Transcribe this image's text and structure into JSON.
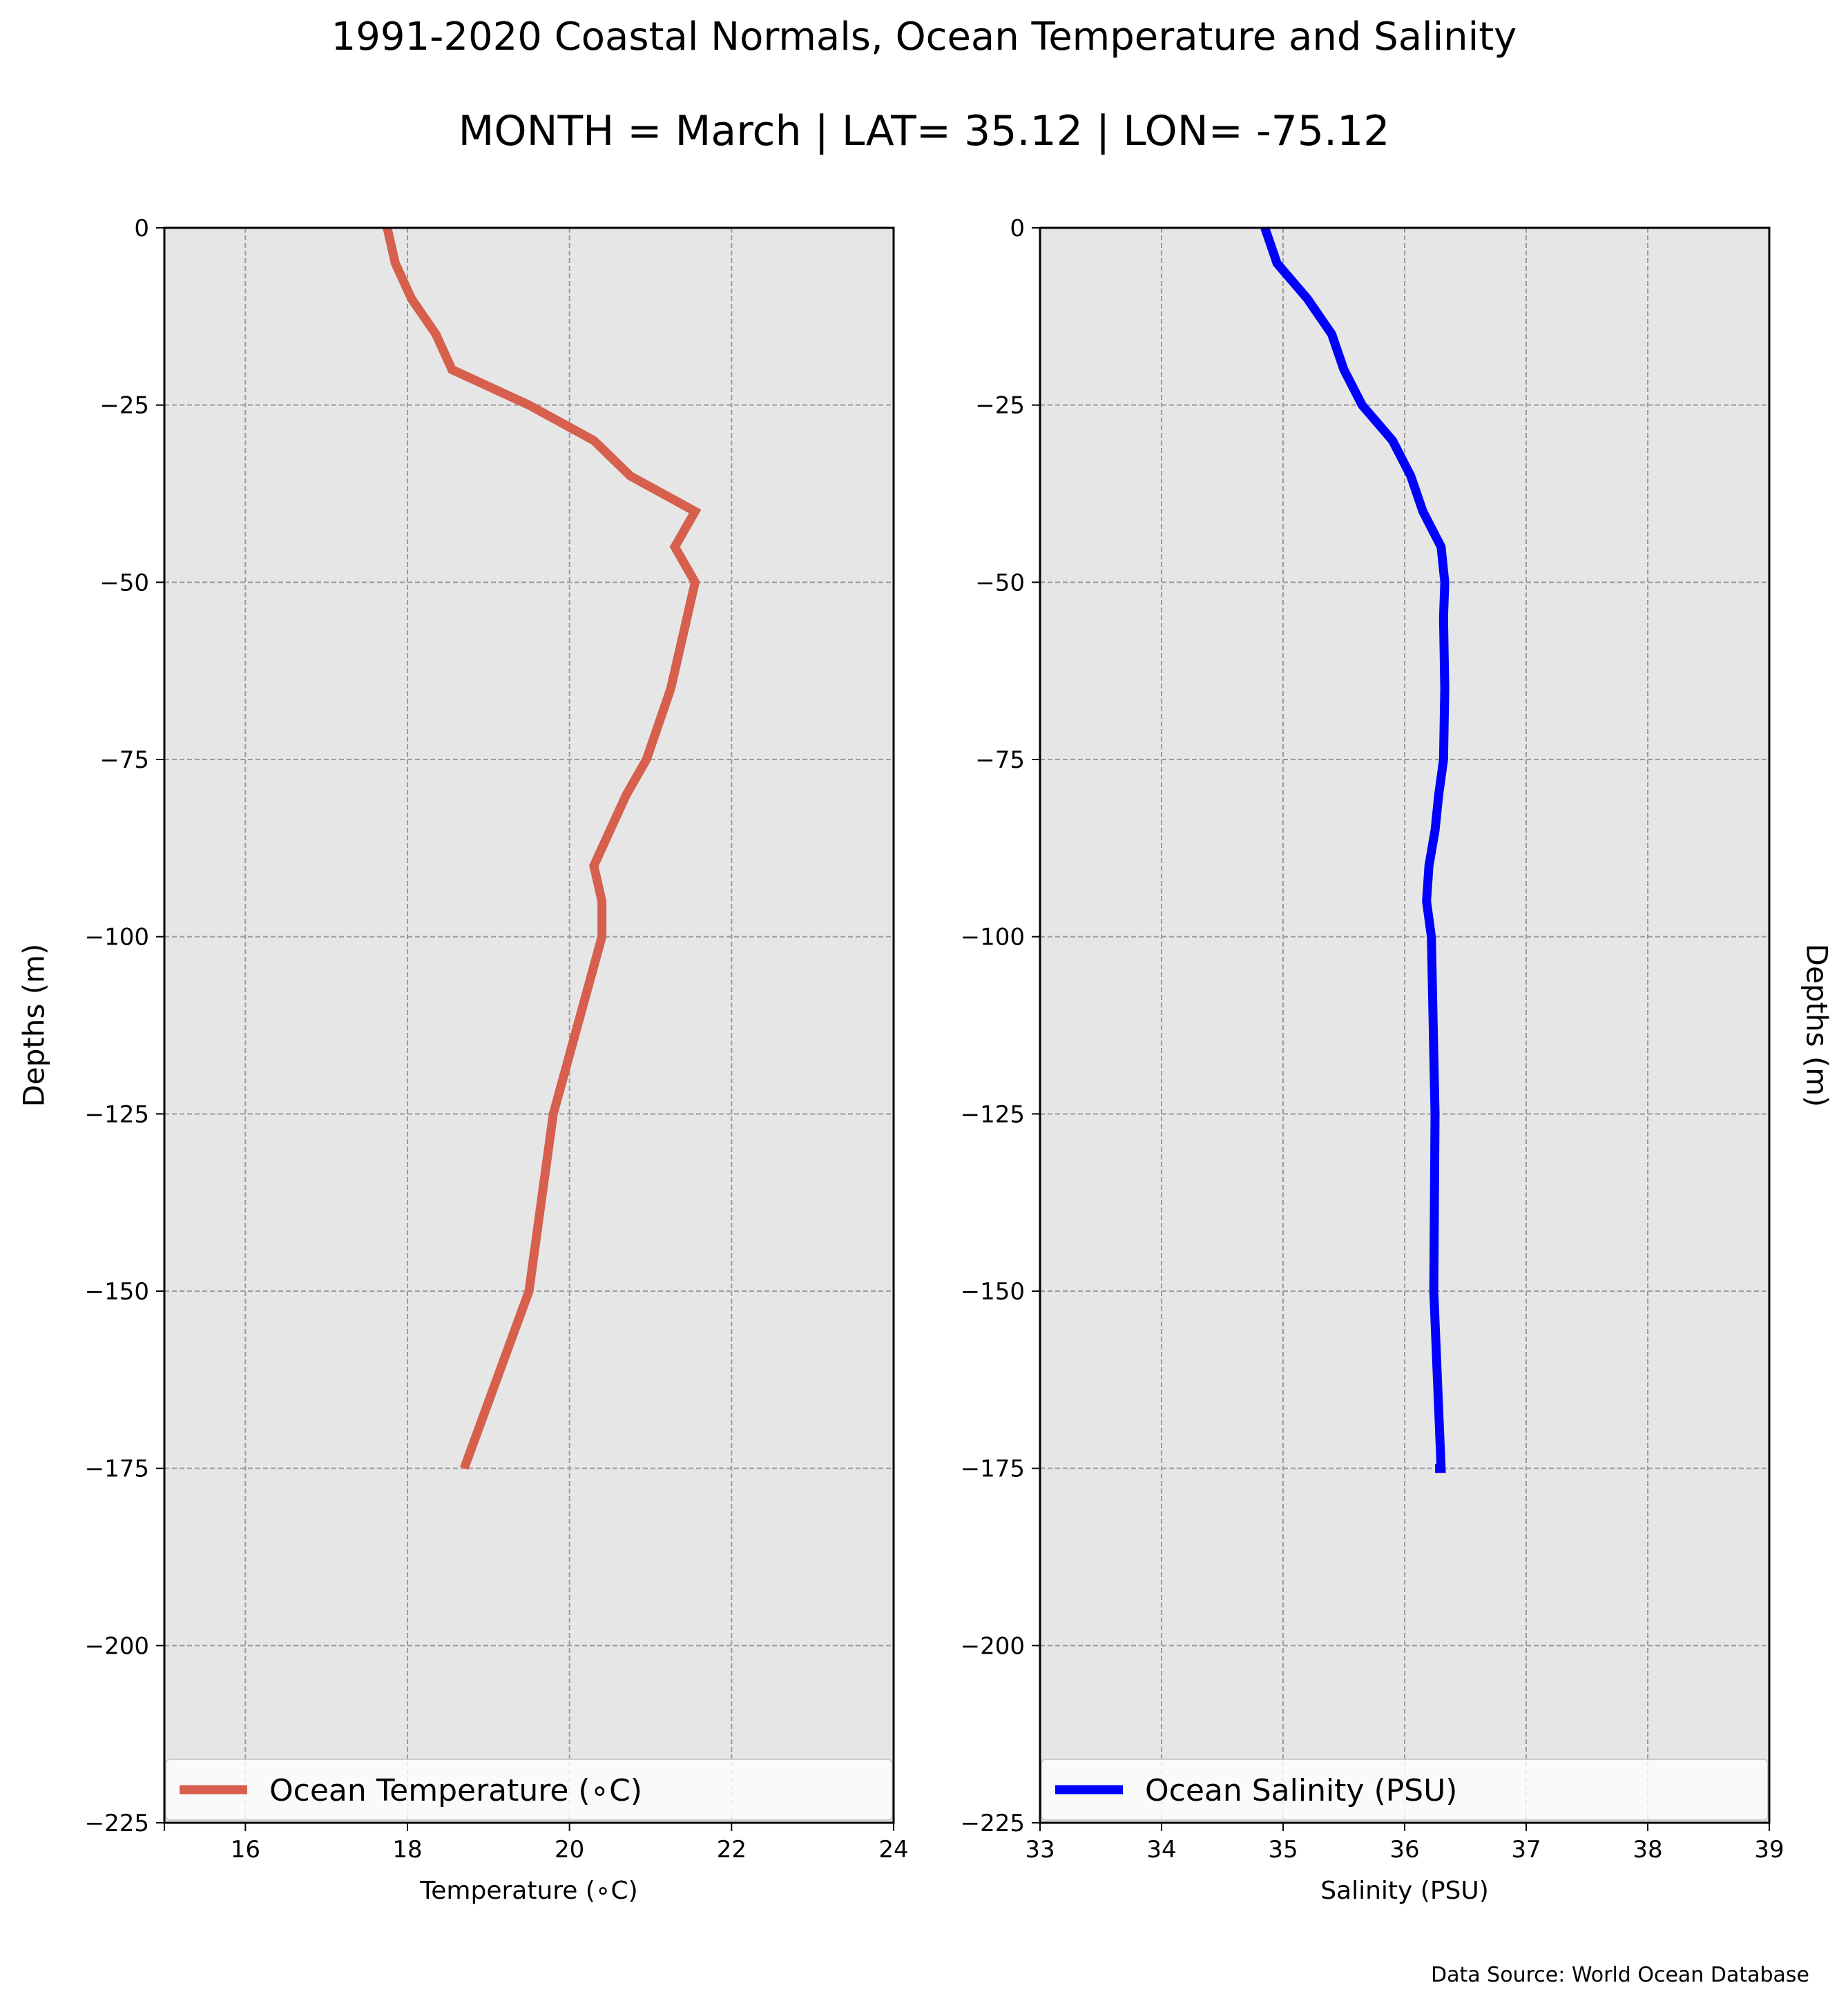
{
  "title": "1991-2020 Coastal Normals, Ocean Temperature and Salinity",
  "subtitle": "MONTH = March | LAT= 35.12 | LON= -75.12",
  "source": "Data Source: World Ocean Database",
  "chart_data": [
    {
      "type": "line",
      "xlabel": "Temperature (∘C)",
      "ylabel": "Depths (m)",
      "xlim": [
        15,
        24
      ],
      "ylim": [
        -225,
        0
      ],
      "xticks": [
        "16",
        "18",
        "20",
        "22",
        "24"
      ],
      "yticks": [
        "0",
        "−25",
        "−50",
        "−75",
        "−100",
        "−125",
        "−150",
        "−175",
        "−200",
        "−225"
      ],
      "grid": true,
      "legend_position": "lower-center",
      "series": [
        {
          "name": "Ocean Temperature (∘C)",
          "color": "#d65f4d",
          "x": [
            17.75,
            17.85,
            18.05,
            18.35,
            18.55,
            19.5,
            20.3,
            20.75,
            21.55,
            21.3,
            21.55,
            21.45,
            21.25,
            20.95,
            20.7,
            20.5,
            20.3,
            20.4,
            20.4,
            19.8,
            19.5,
            18.7
          ],
          "y": [
            0,
            -5,
            -10,
            -15,
            -20,
            -25,
            -30,
            -35,
            -40,
            -45,
            -50,
            -55,
            -65,
            -75,
            -80,
            -85,
            -90,
            -95,
            -100,
            -125,
            -150,
            -175
          ]
        }
      ]
    },
    {
      "type": "line",
      "xlabel": "Salinity (PSU)",
      "ylabel": "Depths (m)",
      "xlim": [
        33,
        39
      ],
      "ylim": [
        -225,
        0
      ],
      "xticks": [
        "33",
        "34",
        "35",
        "36",
        "37",
        "38",
        "39"
      ],
      "yticks": [
        "0",
        "−25",
        "−50",
        "−75",
        "−100",
        "−125",
        "−150",
        "−175",
        "−200",
        "−225"
      ],
      "grid": true,
      "legend_position": "lower-center",
      "series": [
        {
          "name": "Ocean Salinity (PSU)",
          "color": "#0000ff",
          "x": [
            34.85,
            34.95,
            35.2,
            35.4,
            35.5,
            35.65,
            35.9,
            36.05,
            36.15,
            36.3,
            36.33,
            36.32,
            36.33,
            36.32,
            36.28,
            36.25,
            36.2,
            36.18,
            36.22,
            36.25,
            36.24,
            36.3,
            36.25
          ],
          "y": [
            0,
            -5,
            -10,
            -15,
            -20,
            -25,
            -30,
            -35,
            -40,
            -45,
            -50,
            -55,
            -65,
            -75,
            -80,
            -85,
            -90,
            -95,
            -100,
            -125,
            -150,
            -175,
            -175
          ]
        }
      ]
    }
  ]
}
